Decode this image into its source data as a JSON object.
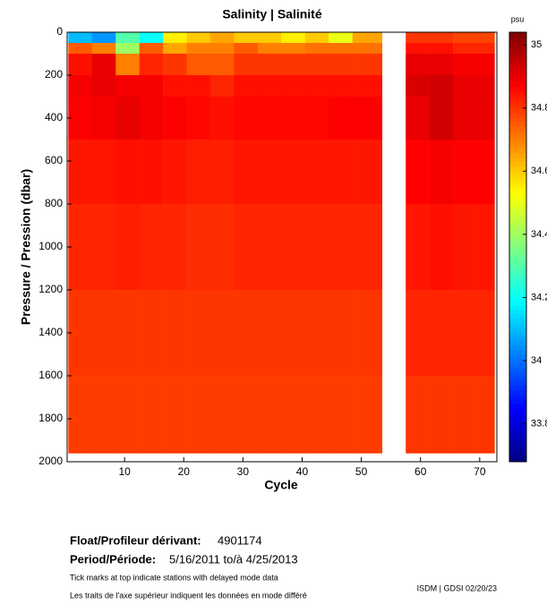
{
  "chart_data": {
    "type": "heatmap",
    "title": "Salinity | Salinité",
    "x_label": "Cycle",
    "y_label": "Pressure / Pression (dbar)",
    "colorbar_label": "psu",
    "colormap": "jet",
    "xlim": [
      0.3,
      72.9
    ],
    "xticks": [
      10,
      20,
      30,
      40,
      50,
      60,
      70
    ],
    "ylim": [
      0,
      2000
    ],
    "y_reversed": true,
    "yticks": [
      0,
      200,
      400,
      600,
      800,
      1000,
      1200,
      1400,
      1600,
      1800,
      2000
    ],
    "clim": [
      33.68,
      35.04
    ],
    "cticks": [
      33.8,
      34,
      34.2,
      34.4,
      34.6,
      34.8,
      35
    ],
    "x_bins": [
      0.5,
      4.5,
      8.5,
      12.5,
      16.5,
      20.5,
      24.5,
      28.5,
      32.5,
      36.5,
      40.5,
      44.5,
      48.5,
      53.5,
      57.5,
      61.5,
      65.5,
      69.5,
      72.5
    ],
    "y_bins": [
      0,
      50,
      100,
      200,
      300,
      500,
      800,
      1200,
      1600,
      1960
    ],
    "z": [
      [
        34.1,
        34.05,
        34.3,
        34.2,
        34.55,
        34.6,
        34.65,
        34.6,
        34.6,
        34.55,
        34.6,
        34.5,
        34.65,
        null,
        34.8,
        34.8,
        34.78,
        34.78
      ],
      [
        34.75,
        34.7,
        34.4,
        34.75,
        34.65,
        34.7,
        34.7,
        34.75,
        34.7,
        34.7,
        34.72,
        34.72,
        34.72,
        null,
        34.85,
        34.85,
        34.82,
        34.82
      ],
      [
        34.85,
        34.9,
        34.7,
        34.82,
        34.8,
        34.75,
        34.75,
        34.8,
        34.8,
        34.8,
        34.8,
        34.8,
        34.8,
        null,
        34.9,
        34.9,
        34.88,
        34.88
      ],
      [
        34.88,
        34.9,
        34.88,
        34.88,
        34.85,
        34.85,
        34.82,
        34.85,
        34.85,
        34.85,
        34.85,
        34.85,
        34.85,
        null,
        34.92,
        34.93,
        34.9,
        34.9
      ],
      [
        34.87,
        34.88,
        34.9,
        34.88,
        34.87,
        34.86,
        34.85,
        34.86,
        34.86,
        34.86,
        34.86,
        34.87,
        34.87,
        null,
        34.9,
        34.93,
        34.9,
        34.9
      ],
      [
        34.84,
        34.84,
        34.85,
        34.85,
        34.84,
        34.83,
        34.83,
        34.84,
        34.84,
        34.84,
        34.84,
        34.84,
        34.84,
        null,
        34.87,
        34.88,
        34.87,
        34.87
      ],
      [
        34.82,
        34.82,
        34.83,
        34.82,
        34.82,
        34.81,
        34.81,
        34.82,
        34.82,
        34.82,
        34.82,
        34.82,
        34.82,
        null,
        34.84,
        34.85,
        34.84,
        34.84
      ],
      [
        34.8,
        34.8,
        34.8,
        34.8,
        34.8,
        34.8,
        34.8,
        34.8,
        34.8,
        34.8,
        34.8,
        34.8,
        34.8,
        null,
        34.82,
        34.82,
        34.82,
        34.82
      ],
      [
        34.79,
        34.79,
        34.79,
        34.79,
        34.79,
        34.79,
        34.79,
        34.79,
        34.79,
        34.79,
        34.79,
        34.79,
        34.79,
        null,
        34.8,
        34.8,
        34.8,
        34.8
      ]
    ]
  },
  "footer": {
    "float_label": "Float/Profileur dérivant:",
    "float_id": "4901174",
    "period_label": "Period/Période:",
    "period": "5/16/2011  to/à  4/25/2013",
    "note_en": "Tick marks at top indicate stations with delayed mode data",
    "note_fr": "Les traits de l'axe supérieur indiquent les données en mode différé",
    "credit": "ISDM | GDSI 02/20/23"
  }
}
